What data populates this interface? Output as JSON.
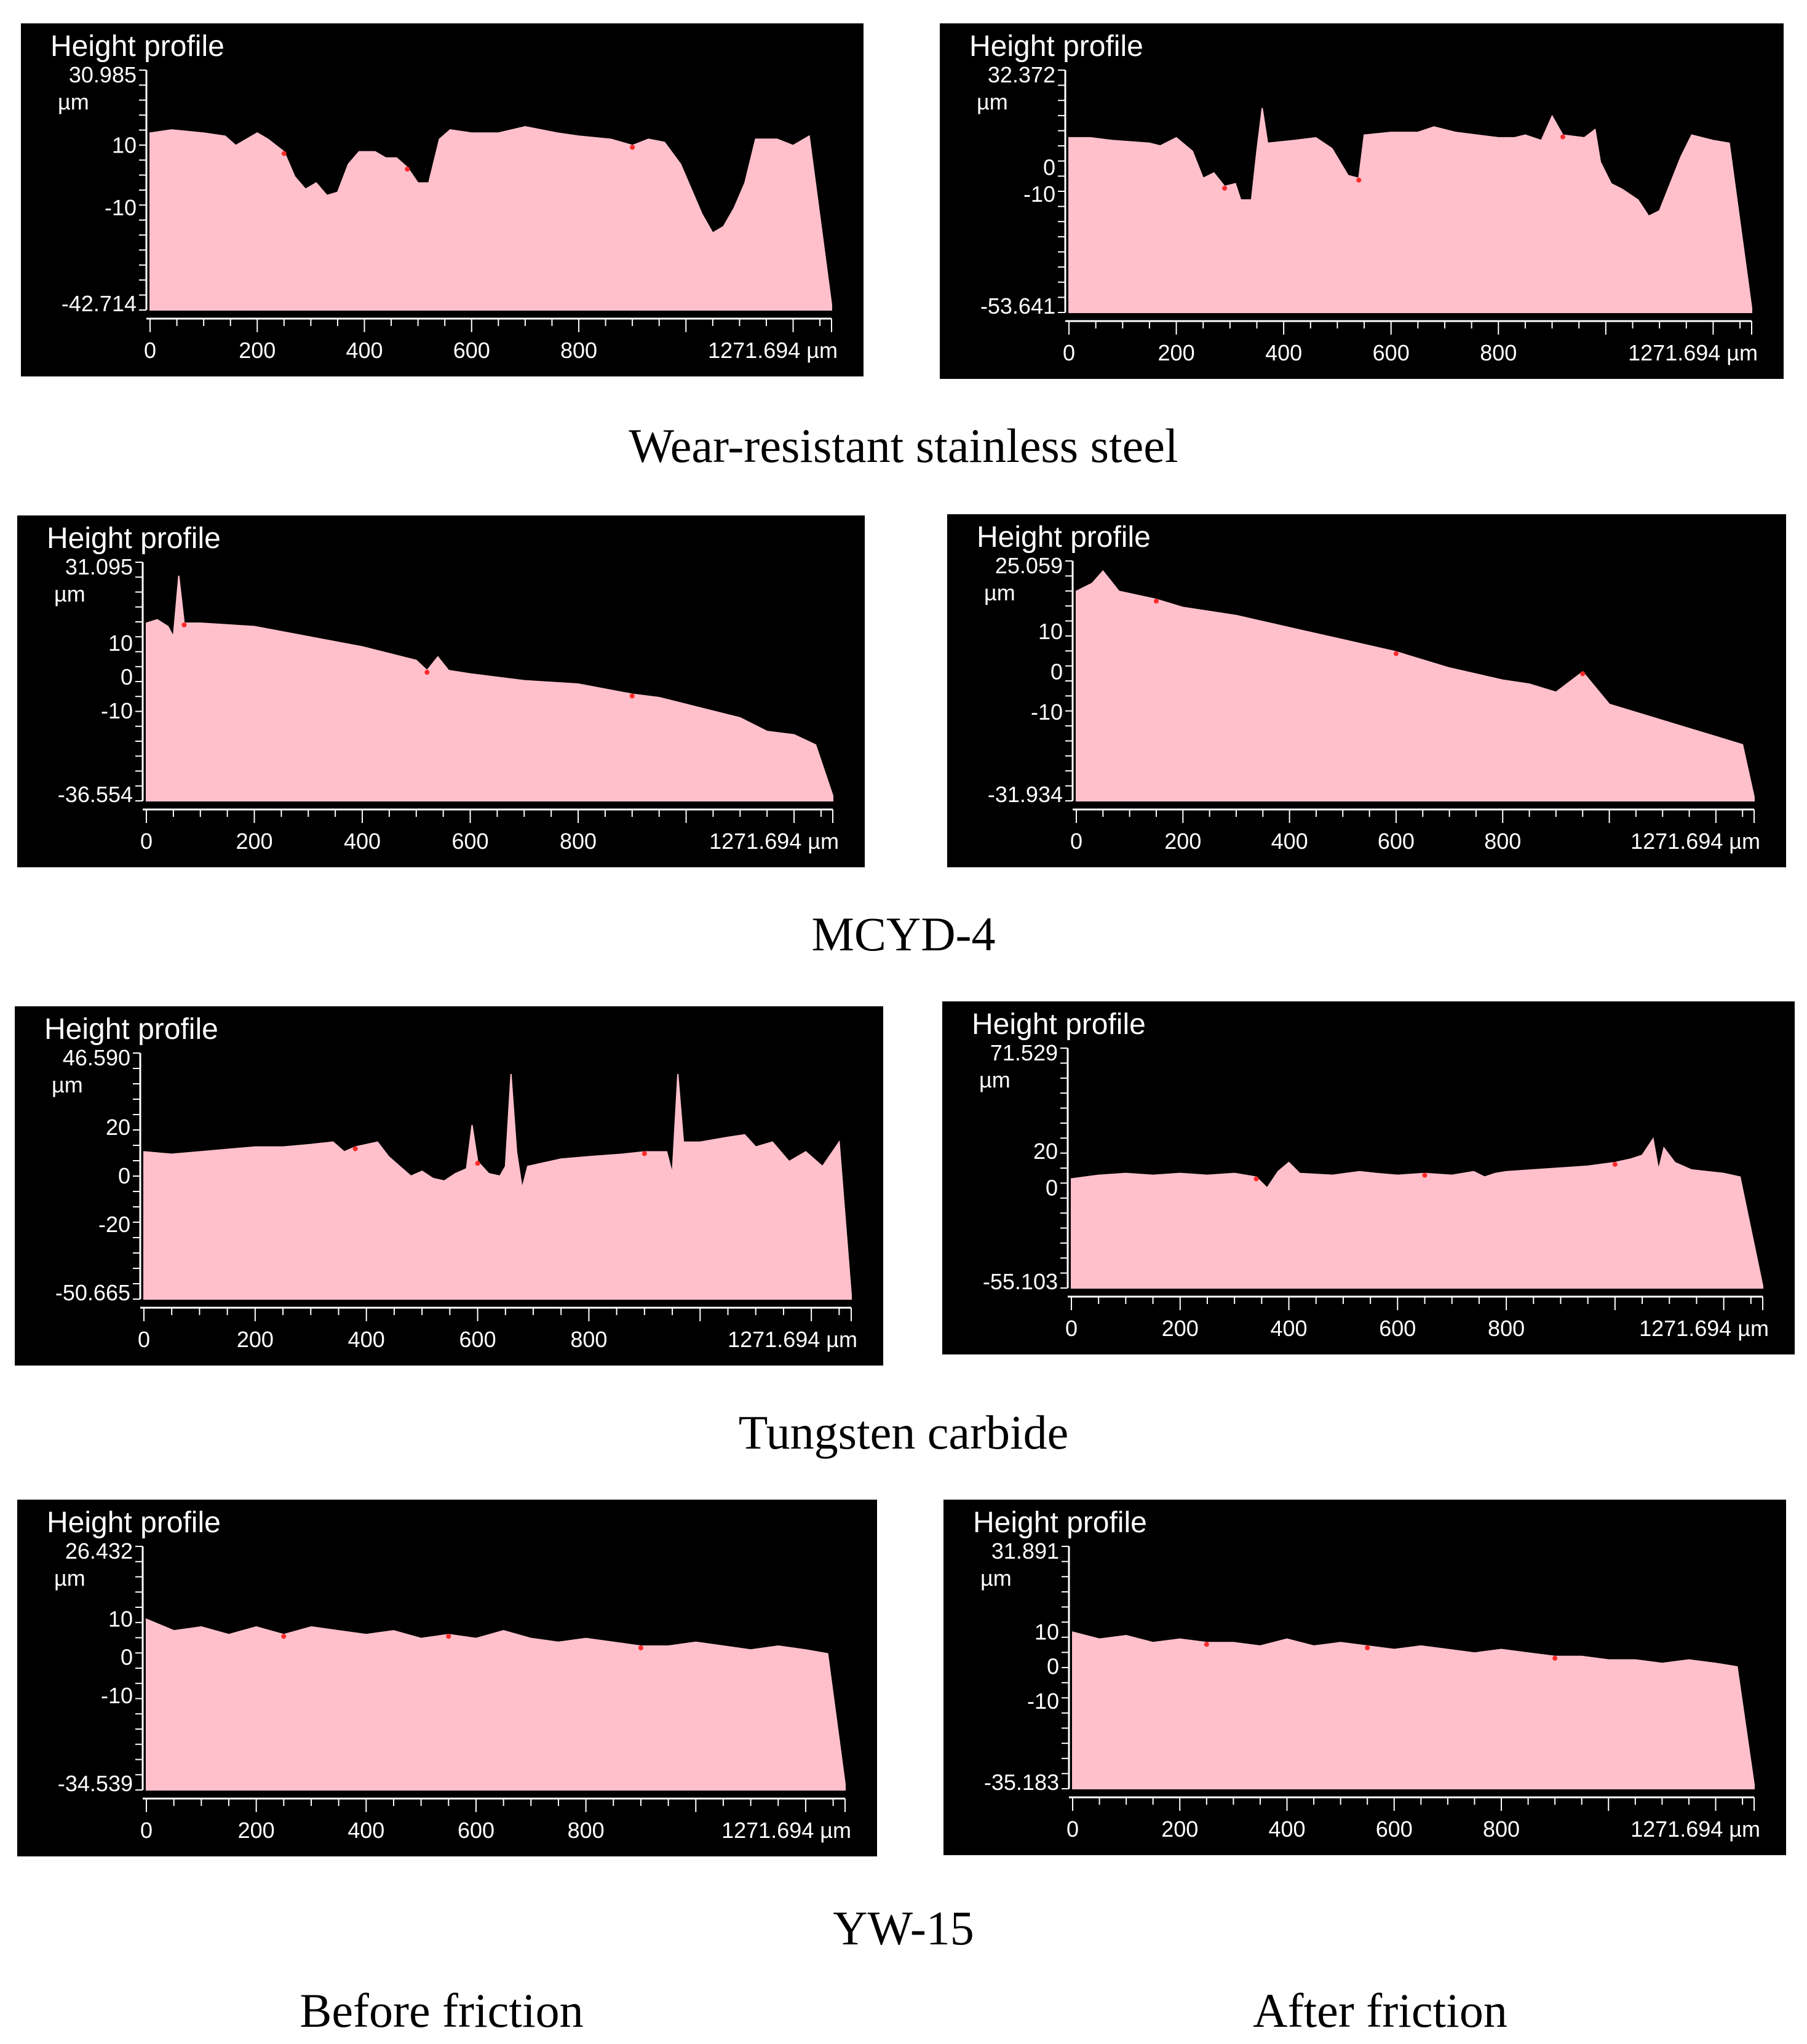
{
  "colors": {
    "panel_bg": "#000000",
    "fill": "#ffc0cb",
    "highlight": "#ff2a2a",
    "text": "#ffffff",
    "axis": "#ffffff"
  },
  "column_captions": {
    "before": "Before friction",
    "after": "After friction"
  },
  "groups": [
    {
      "caption": "Wear-resistant stainless steel"
    },
    {
      "caption": "MCYD-4"
    },
    {
      "caption": "Tungsten carbide"
    },
    {
      "caption": "YW-15"
    }
  ],
  "chart_data": [
    {
      "type": "area",
      "title": "Height profile",
      "group": "Wear-resistant stainless steel",
      "condition": "Before friction",
      "ylim": [
        -42.714,
        30.985
      ],
      "y_top_label": "30.985",
      "y_unit": "µm",
      "y_ticks": [
        "10",
        "-10"
      ],
      "y_tick_values": [
        10,
        -10
      ],
      "y_bottom_label": "-42.714",
      "xlim": [
        0,
        1271.694
      ],
      "x_ticks": [
        "0",
        "200",
        "400",
        "600",
        "800"
      ],
      "x_end_label": "1271.694 µm",
      "profile": [
        [
          0,
          14
        ],
        [
          40,
          15
        ],
        [
          100,
          14
        ],
        [
          140,
          13
        ],
        [
          160,
          10
        ],
        [
          180,
          12
        ],
        [
          200,
          14
        ],
        [
          220,
          12
        ],
        [
          250,
          8
        ],
        [
          270,
          0
        ],
        [
          290,
          -4
        ],
        [
          310,
          -2
        ],
        [
          330,
          -6
        ],
        [
          350,
          -5
        ],
        [
          370,
          4
        ],
        [
          390,
          8
        ],
        [
          420,
          8
        ],
        [
          440,
          6
        ],
        [
          460,
          6
        ],
        [
          480,
          3
        ],
        [
          500,
          -2
        ],
        [
          520,
          -2
        ],
        [
          540,
          12
        ],
        [
          560,
          15
        ],
        [
          600,
          14
        ],
        [
          650,
          14
        ],
        [
          700,
          16
        ],
        [
          760,
          14
        ],
        [
          800,
          13
        ],
        [
          860,
          12
        ],
        [
          900,
          10
        ],
        [
          930,
          12
        ],
        [
          960,
          11
        ],
        [
          990,
          4
        ],
        [
          1010,
          -4
        ],
        [
          1030,
          -12
        ],
        [
          1050,
          -18
        ],
        [
          1070,
          -16
        ],
        [
          1090,
          -10
        ],
        [
          1110,
          -2
        ],
        [
          1130,
          12
        ],
        [
          1170,
          12
        ],
        [
          1200,
          10
        ],
        [
          1230,
          13
        ],
        [
          1271.694,
          -41
        ]
      ]
    },
    {
      "type": "area",
      "title": "Height profile",
      "group": "Wear-resistant stainless steel",
      "condition": "After friction",
      "ylim": [
        -53.641,
        32.372
      ],
      "y_top_label": "32.372",
      "y_unit": "µm",
      "y_ticks": [
        "0",
        "-10"
      ],
      "y_tick_values": [
        0,
        -10
      ],
      "y_bottom_label": "-53.641",
      "xlim": [
        0,
        1271.694
      ],
      "x_ticks": [
        "0",
        "200",
        "400",
        "600",
        "800"
      ],
      "x_end_label": "1271.694 µm",
      "profile": [
        [
          0,
          11
        ],
        [
          40,
          11
        ],
        [
          80,
          10
        ],
        [
          150,
          9
        ],
        [
          170,
          8
        ],
        [
          200,
          11
        ],
        [
          230,
          6
        ],
        [
          250,
          -4
        ],
        [
          270,
          -2
        ],
        [
          290,
          -7
        ],
        [
          310,
          -6
        ],
        [
          320,
          -12
        ],
        [
          340,
          -12
        ],
        [
          350,
          6
        ],
        [
          360,
          22
        ],
        [
          370,
          9
        ],
        [
          420,
          10
        ],
        [
          460,
          11
        ],
        [
          490,
          7
        ],
        [
          520,
          -3
        ],
        [
          540,
          -4
        ],
        [
          550,
          12
        ],
        [
          600,
          13
        ],
        [
          650,
          13
        ],
        [
          680,
          15
        ],
        [
          720,
          13
        ],
        [
          760,
          12
        ],
        [
          800,
          11
        ],
        [
          830,
          11
        ],
        [
          850,
          12
        ],
        [
          880,
          10
        ],
        [
          900,
          19
        ],
        [
          920,
          12
        ],
        [
          960,
          11
        ],
        [
          980,
          14
        ],
        [
          990,
          2
        ],
        [
          1010,
          -6
        ],
        [
          1030,
          -8
        ],
        [
          1060,
          -12
        ],
        [
          1080,
          -18
        ],
        [
          1100,
          -16
        ],
        [
          1120,
          -6
        ],
        [
          1140,
          4
        ],
        [
          1160,
          12
        ],
        [
          1200,
          10
        ],
        [
          1230,
          9
        ],
        [
          1271.694,
          -52
        ]
      ]
    },
    {
      "type": "area",
      "title": "Height profile",
      "group": "MCYD-4",
      "condition": "Before friction",
      "ylim": [
        -36.554,
        31.095
      ],
      "y_top_label": "31.095",
      "y_unit": "µm",
      "y_ticks": [
        "10",
        "0",
        "-10"
      ],
      "y_tick_values": [
        10,
        0,
        -10
      ],
      "y_bottom_label": "-36.554",
      "xlim": [
        0,
        1271.694
      ],
      "x_ticks": [
        "0",
        "200",
        "400",
        "600",
        "800"
      ],
      "x_end_label": "1271.694 µm",
      "profile": [
        [
          0,
          16
        ],
        [
          20,
          17
        ],
        [
          40,
          15
        ],
        [
          50,
          12
        ],
        [
          60,
          30
        ],
        [
          70,
          16
        ],
        [
          100,
          16
        ],
        [
          200,
          15
        ],
        [
          300,
          12
        ],
        [
          400,
          9
        ],
        [
          500,
          5
        ],
        [
          520,
          2
        ],
        [
          540,
          6
        ],
        [
          560,
          2
        ],
        [
          600,
          1
        ],
        [
          700,
          -1
        ],
        [
          800,
          -2
        ],
        [
          900,
          -5
        ],
        [
          950,
          -6
        ],
        [
          1000,
          -8
        ],
        [
          1050,
          -10
        ],
        [
          1100,
          -12
        ],
        [
          1150,
          -16
        ],
        [
          1200,
          -17
        ],
        [
          1240,
          -20
        ],
        [
          1271.694,
          -35
        ]
      ]
    },
    {
      "type": "area",
      "title": "Height profile",
      "group": "MCYD-4",
      "condition": "After friction",
      "ylim": [
        -31.934,
        25.059
      ],
      "y_top_label": "25.059",
      "y_unit": "µm",
      "y_ticks": [
        "10",
        "0",
        "-10"
      ],
      "y_tick_values": [
        10,
        0,
        -10
      ],
      "y_bottom_label": "-31.934",
      "xlim": [
        0,
        1271.694
      ],
      "x_ticks": [
        "0",
        "200",
        "400",
        "600",
        "800"
      ],
      "x_end_label": "1271.694 µm",
      "profile": [
        [
          0,
          20
        ],
        [
          30,
          22
        ],
        [
          50,
          25
        ],
        [
          80,
          20
        ],
        [
          150,
          18
        ],
        [
          200,
          16
        ],
        [
          300,
          14
        ],
        [
          400,
          11
        ],
        [
          500,
          8
        ],
        [
          600,
          5
        ],
        [
          700,
          1
        ],
        [
          800,
          -2
        ],
        [
          850,
          -3
        ],
        [
          900,
          -5
        ],
        [
          950,
          0
        ],
        [
          1000,
          -8
        ],
        [
          1100,
          -12
        ],
        [
          1150,
          -14
        ],
        [
          1200,
          -16
        ],
        [
          1250,
          -18
        ],
        [
          1271.694,
          -31
        ]
      ]
    },
    {
      "type": "area",
      "title": "Height profile",
      "group": "Tungsten carbide",
      "condition": "Before friction",
      "ylim": [
        -50.665,
        46.59
      ],
      "y_top_label": "46.590",
      "y_unit": "µm",
      "y_ticks": [
        "20",
        "0",
        "-20"
      ],
      "y_tick_values": [
        20,
        0,
        -20
      ],
      "y_bottom_label": "-50.665",
      "xlim": [
        0,
        1271.694
      ],
      "x_ticks": [
        "0",
        "200",
        "400",
        "600",
        "800"
      ],
      "x_end_label": "1271.694 µm",
      "profile": [
        [
          0,
          10
        ],
        [
          50,
          9
        ],
        [
          100,
          10
        ],
        [
          150,
          11
        ],
        [
          200,
          12
        ],
        [
          250,
          12
        ],
        [
          300,
          13
        ],
        [
          340,
          14
        ],
        [
          360,
          10
        ],
        [
          380,
          12
        ],
        [
          420,
          14
        ],
        [
          440,
          8
        ],
        [
          460,
          4
        ],
        [
          480,
          0
        ],
        [
          500,
          2
        ],
        [
          520,
          -1
        ],
        [
          540,
          -2
        ],
        [
          560,
          1
        ],
        [
          580,
          3
        ],
        [
          590,
          21
        ],
        [
          600,
          6
        ],
        [
          620,
          1
        ],
        [
          640,
          0
        ],
        [
          650,
          4
        ],
        [
          660,
          42
        ],
        [
          670,
          10
        ],
        [
          680,
          -5
        ],
        [
          690,
          4
        ],
        [
          710,
          5
        ],
        [
          750,
          7
        ],
        [
          800,
          8
        ],
        [
          860,
          9
        ],
        [
          900,
          10
        ],
        [
          940,
          10
        ],
        [
          950,
          1
        ],
        [
          960,
          42
        ],
        [
          970,
          14
        ],
        [
          1000,
          14
        ],
        [
          1050,
          16
        ],
        [
          1080,
          17
        ],
        [
          1100,
          12
        ],
        [
          1130,
          14
        ],
        [
          1160,
          6
        ],
        [
          1190,
          10
        ],
        [
          1220,
          4
        ],
        [
          1250,
          14
        ],
        [
          1271.694,
          -49
        ]
      ]
    },
    {
      "type": "area",
      "title": "Height profile",
      "group": "Tungsten carbide",
      "condition": "After friction",
      "ylim": [
        -55.103,
        71.529
      ],
      "y_top_label": "71.529",
      "y_unit": "µm",
      "y_ticks": [
        "20",
        "0"
      ],
      "y_tick_values": [
        20,
        0
      ],
      "y_bottom_label": "-55.103",
      "xlim": [
        0,
        1271.694
      ],
      "x_ticks": [
        "0",
        "200",
        "400",
        "600",
        "800"
      ],
      "x_end_label": "1271.694 µm",
      "profile": [
        [
          0,
          5
        ],
        [
          50,
          7
        ],
        [
          100,
          8
        ],
        [
          150,
          7
        ],
        [
          200,
          8
        ],
        [
          250,
          7
        ],
        [
          300,
          8
        ],
        [
          340,
          6
        ],
        [
          360,
          0
        ],
        [
          380,
          9
        ],
        [
          400,
          14
        ],
        [
          420,
          8
        ],
        [
          480,
          7
        ],
        [
          530,
          9
        ],
        [
          560,
          8
        ],
        [
          600,
          7
        ],
        [
          650,
          8
        ],
        [
          700,
          7
        ],
        [
          740,
          9
        ],
        [
          760,
          6
        ],
        [
          780,
          8
        ],
        [
          800,
          9
        ],
        [
          850,
          10
        ],
        [
          900,
          11
        ],
        [
          950,
          12
        ],
        [
          1000,
          14
        ],
        [
          1030,
          16
        ],
        [
          1050,
          18
        ],
        [
          1070,
          27
        ],
        [
          1080,
          10
        ],
        [
          1090,
          22
        ],
        [
          1110,
          14
        ],
        [
          1140,
          10
        ],
        [
          1170,
          9
        ],
        [
          1200,
          8
        ],
        [
          1230,
          6
        ],
        [
          1271.694,
          -54
        ]
      ]
    },
    {
      "type": "area",
      "title": "Height profile",
      "group": "YW-15",
      "condition": "Before friction",
      "ylim": [
        -34.539,
        26.432
      ],
      "y_top_label": "26.432",
      "y_unit": "µm",
      "y_ticks": [
        "10",
        "0",
        "-10"
      ],
      "y_tick_values": [
        10,
        0,
        -10
      ],
      "y_bottom_label": "-34.539",
      "xlim": [
        0,
        1271.694
      ],
      "x_ticks": [
        "0",
        "200",
        "400",
        "600",
        "800"
      ],
      "x_end_label": "1271.694 µm",
      "profile": [
        [
          0,
          10
        ],
        [
          50,
          7
        ],
        [
          100,
          8
        ],
        [
          150,
          6
        ],
        [
          200,
          8
        ],
        [
          250,
          6
        ],
        [
          300,
          8
        ],
        [
          350,
          7
        ],
        [
          400,
          6
        ],
        [
          450,
          7
        ],
        [
          500,
          5
        ],
        [
          550,
          6
        ],
        [
          600,
          5
        ],
        [
          650,
          7
        ],
        [
          700,
          5
        ],
        [
          750,
          4
        ],
        [
          800,
          5
        ],
        [
          850,
          4
        ],
        [
          900,
          3
        ],
        [
          950,
          3
        ],
        [
          1000,
          4
        ],
        [
          1050,
          3
        ],
        [
          1100,
          2
        ],
        [
          1150,
          3
        ],
        [
          1200,
          2
        ],
        [
          1240,
          1
        ],
        [
          1271.694,
          -33
        ]
      ]
    },
    {
      "type": "area",
      "title": "Height profile",
      "group": "YW-15",
      "condition": "After friction",
      "ylim": [
        -35.183,
        31.891
      ],
      "y_top_label": "31.891",
      "y_unit": "µm",
      "y_ticks": [
        "10",
        "0",
        "-10"
      ],
      "y_tick_values": [
        10,
        0,
        -10
      ],
      "y_bottom_label": "-35.183",
      "xlim": [
        0,
        1271.694
      ],
      "x_ticks": [
        "0",
        "200",
        "400",
        "600",
        "800"
      ],
      "x_end_label": "1271.694 µm",
      "profile": [
        [
          0,
          10
        ],
        [
          50,
          8
        ],
        [
          100,
          9
        ],
        [
          150,
          7
        ],
        [
          200,
          8
        ],
        [
          250,
          7
        ],
        [
          300,
          7
        ],
        [
          350,
          6
        ],
        [
          400,
          8
        ],
        [
          450,
          6
        ],
        [
          500,
          7
        ],
        [
          550,
          6
        ],
        [
          600,
          5
        ],
        [
          650,
          6
        ],
        [
          700,
          5
        ],
        [
          750,
          4
        ],
        [
          800,
          5
        ],
        [
          850,
          4
        ],
        [
          900,
          3
        ],
        [
          950,
          3
        ],
        [
          1000,
          2
        ],
        [
          1050,
          2
        ],
        [
          1100,
          1
        ],
        [
          1150,
          2
        ],
        [
          1200,
          1
        ],
        [
          1240,
          0
        ],
        [
          1271.694,
          -34
        ]
      ]
    }
  ]
}
